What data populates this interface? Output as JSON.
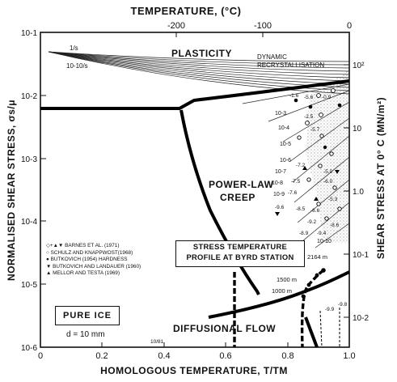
{
  "top_axis": {
    "title": "TEMPERATURE, (°C)",
    "ticks": [
      "-200",
      "-100",
      "0"
    ]
  },
  "bottom_axis": {
    "title": "HOMOLOGOUS TEMPERATURE, T/TM",
    "ticks": [
      "0",
      "0.2",
      "0.4",
      "0.6",
      "0.8",
      "1.0"
    ]
  },
  "left_axis": {
    "title": "NORMALISED SHEAR STRESS, σs/μ",
    "ticks": [
      "10-1",
      "10-2",
      "10-3",
      "10-4",
      "10-5",
      "10-6"
    ]
  },
  "right_axis": {
    "title": "SHEAR STRESS AT 0° C (MN/m²)",
    "ticks": [
      "10²",
      "10",
      "1.0",
      "10-1",
      "10-2"
    ]
  },
  "regions": {
    "plasticity": "PLASTICITY",
    "recrystallisation_1": "DYNAMIC",
    "recrystallisation_2": "RECRYSTALLISATION",
    "powerlaw_1": "POWER-LAW",
    "powerlaw_2": "CREEP",
    "diffusional": "DIFFUSIONAL FLOW"
  },
  "strain_rate_labels": [
    "1/s",
    "10-10/s"
  ],
  "contour_labels": [
    "10-3",
    "10-4",
    "10-5",
    "10-6",
    "10-7",
    "10-8",
    "10-9",
    "10-10"
  ],
  "data_values": [
    "-1.6",
    "-5.6",
    "-0.9",
    "-2.5",
    "-5.7",
    "-7.2",
    "-7.5",
    "-7.6",
    "-9.6",
    "-8.5",
    "-5.0",
    "-6.0",
    "-6.6",
    "-5.3",
    "-9.2",
    "-9.4",
    "-8.9",
    "-8.6",
    "-9.9",
    "-9.8"
  ],
  "profile": {
    "title_line1": "STRESS TEMPERATURE",
    "title_line2": "PROFILE AT BYRD STATION",
    "depths": [
      "2164 m",
      "1500 m",
      "1000 m"
    ]
  },
  "legend": [
    {
      "symbol": "◇+▲▼",
      "text": "BARNES ET AL. (1971)"
    },
    {
      "symbol": "○",
      "text": "SCHULZ AND KNAPPWOST(1968)"
    },
    {
      "symbol": "●",
      "text": "BUTKOVICH (1954) HARDNESS"
    },
    {
      "symbol": "▼",
      "text": "BUTKOVICH AND LANDAUER (1960)"
    },
    {
      "symbol": "▲",
      "text": "MELLOR AND TESTA (1969)"
    }
  ],
  "material": "PURE ICE",
  "grain_size": "d = 10 mm",
  "footnote": "10/81"
}
